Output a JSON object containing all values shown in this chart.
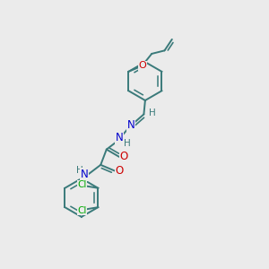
{
  "bg_color": "#ebebeb",
  "atom_colors": {
    "C": "#3a7a7a",
    "N": "#0000cc",
    "O": "#cc0000",
    "Cl": "#00aa00",
    "H": "#3a7a7a"
  },
  "bond_color": "#3a7a7a",
  "bond_width": 1.4,
  "font_size": 7.5,
  "figsize": [
    3.0,
    3.0
  ],
  "dpi": 100
}
